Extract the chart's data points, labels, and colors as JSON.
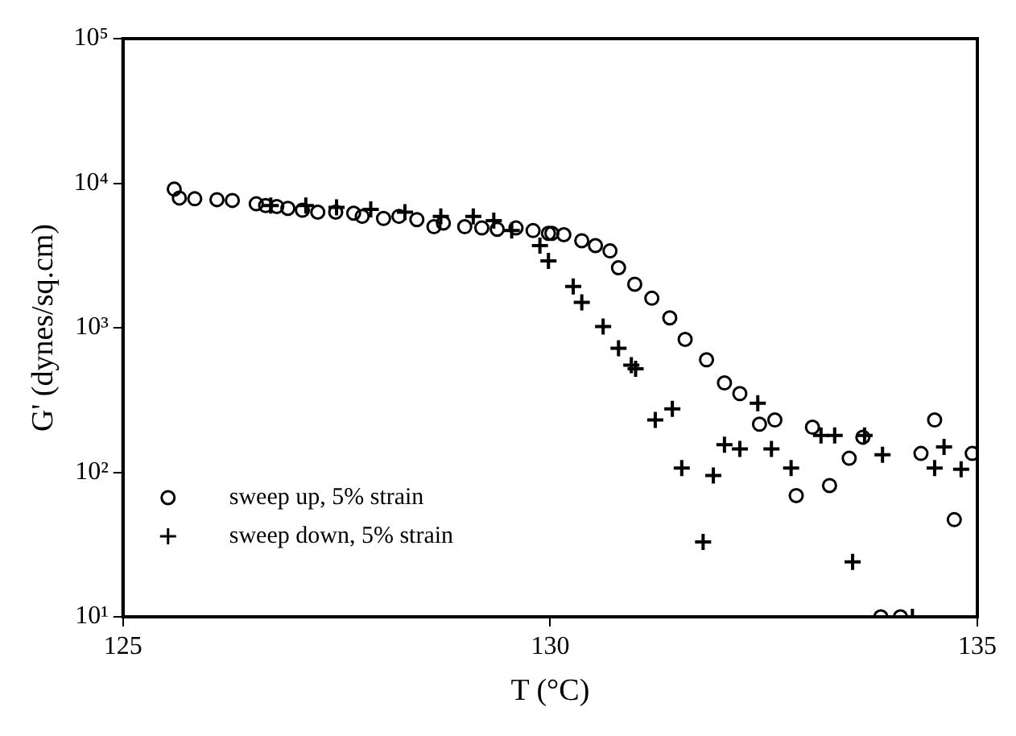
{
  "chart_data": {
    "type": "scatter",
    "xlabel": "T (°C)",
    "ylabel": "G' (dynes/sq.cm)",
    "log": "y",
    "grid": false,
    "legend": "bottom left",
    "xlim": [
      125,
      135
    ],
    "xticks": [
      125,
      130,
      135
    ],
    "ylim": [
      10,
      100000
    ],
    "yticks": [
      {
        "value": 10,
        "label": "10¹"
      },
      {
        "value": 100,
        "label": "10²"
      },
      {
        "value": 1000,
        "label": "10³"
      },
      {
        "value": 10000,
        "label": "10⁴"
      },
      {
        "value": 100000,
        "label": "10⁵"
      }
    ],
    "series": [
      {
        "name": "sweep up, 5% strain",
        "color": "#000000",
        "marker": "circle",
        "x": [
          125.6,
          125.66,
          125.84,
          126.1,
          126.28,
          126.56,
          126.67,
          126.8,
          126.93,
          127.1,
          127.28,
          127.49,
          127.7,
          127.8,
          128.05,
          128.23,
          128.44,
          128.64,
          128.75,
          129.0,
          129.2,
          129.38,
          129.6,
          129.8,
          129.98,
          130.02,
          130.16,
          130.37,
          130.53,
          130.7,
          130.8,
          130.99,
          131.19,
          131.4,
          131.58,
          131.83,
          132.04,
          132.22,
          132.45,
          132.63,
          132.88,
          133.07,
          133.27,
          133.5,
          133.66,
          133.87,
          134.1,
          134.34,
          134.5,
          134.73,
          134.94
        ],
        "values": [
          9100,
          7900,
          7800,
          7700,
          7600,
          7200,
          7000,
          6900,
          6700,
          6500,
          6300,
          6300,
          6200,
          5900,
          5700,
          5900,
          5600,
          5000,
          5300,
          5000,
          4900,
          4800,
          4900,
          4700,
          4500,
          4500,
          4400,
          4000,
          3700,
          3400,
          2600,
          2000,
          1600,
          1170,
          830,
          600,
          415,
          350,
          215,
          230,
          69,
          205,
          81,
          125,
          175,
          10,
          10,
          135,
          230,
          47,
          135
        ]
      },
      {
        "name": "sweep down, 5% strain",
        "color": "#000000",
        "marker": "cross",
        "x": [
          126.73,
          127.14,
          127.5,
          127.9,
          128.3,
          128.72,
          129.1,
          129.34,
          129.55,
          129.88,
          129.98,
          130.27,
          130.37,
          130.62,
          130.8,
          130.95,
          131.0,
          131.23,
          131.43,
          131.54,
          131.79,
          131.91,
          132.04,
          132.22,
          132.43,
          132.59,
          132.82,
          133.17,
          133.33,
          133.54,
          133.68,
          133.89,
          134.24,
          134.5,
          134.61,
          134.81
        ],
        "values": [
          7000,
          7000,
          6800,
          6600,
          6300,
          5900,
          5900,
          5500,
          4700,
          3700,
          2900,
          1930,
          1500,
          1020,
          720,
          550,
          520,
          230,
          275,
          107,
          33,
          95,
          155,
          145,
          300,
          145,
          107,
          180,
          180,
          24,
          180,
          132,
          10,
          107,
          150,
          105
        ]
      }
    ]
  }
}
